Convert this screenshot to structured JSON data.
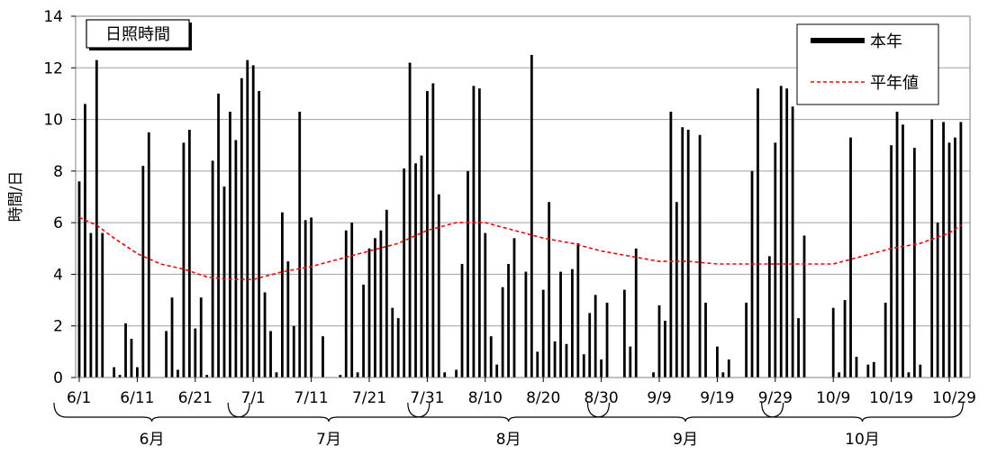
{
  "chart_data": {
    "type": "bar",
    "title": "日照時間",
    "ylabel": "時間/日",
    "xlabel": "",
    "ylim": [
      0,
      14
    ],
    "yticks": [
      0,
      2,
      4,
      6,
      8,
      10,
      12,
      14
    ],
    "grid": true,
    "legend_position": "top-right",
    "x_tick_labels": [
      "6/1",
      "6/11",
      "6/21",
      "7/1",
      "7/11",
      "7/21",
      "7/31",
      "8/10",
      "8/20",
      "8/30",
      "9/9",
      "9/19",
      "9/29",
      "10/9",
      "10/19",
      "10/29"
    ],
    "x_tick_days": [
      0,
      10,
      20,
      30,
      40,
      50,
      60,
      70,
      80,
      90,
      100,
      110,
      120,
      130,
      140,
      150
    ],
    "month_groups": [
      {
        "label": "6月",
        "start_day": 0,
        "end_day": 30
      },
      {
        "label": "7月",
        "start_day": 30,
        "end_day": 61
      },
      {
        "label": "8月",
        "start_day": 61,
        "end_day": 92
      },
      {
        "label": "9月",
        "start_day": 92,
        "end_day": 122
      },
      {
        "label": "10月",
        "start_day": 122,
        "end_day": 153
      }
    ],
    "series": [
      {
        "name": "本年",
        "type": "bar",
        "color": "#000000",
        "values": [
          7.6,
          10.6,
          5.6,
          12.3,
          5.6,
          0,
          0.4,
          0.1,
          2.1,
          1.5,
          0.4,
          8.2,
          9.5,
          0,
          0,
          1.8,
          3.1,
          0.3,
          9.1,
          9.6,
          1.9,
          3.1,
          0.1,
          8.4,
          11.0,
          7.4,
          10.3,
          9.2,
          11.6,
          12.3,
          12.1,
          11.1,
          3.3,
          1.8,
          0.2,
          6.4,
          4.5,
          2.0,
          10.3,
          6.1,
          6.2,
          0,
          1.6,
          0,
          0,
          0.1,
          5.7,
          6.0,
          0.2,
          3.6,
          5.0,
          5.4,
          5.7,
          6.5,
          2.7,
          2.3,
          8.1,
          12.2,
          8.3,
          8.6,
          11.1,
          11.4,
          7.1,
          0.2,
          0,
          0.3,
          4.4,
          8.0,
          11.3,
          11.2,
          5.6,
          1.6,
          0.5,
          3.5,
          4.4,
          5.4,
          0,
          4.1,
          12.5,
          1.0,
          3.4,
          6.8,
          1.4,
          4.1,
          1.3,
          4.2,
          5.2,
          0.9,
          2.5,
          3.2,
          0.7,
          2.9,
          0,
          0,
          3.4,
          1.2,
          5.0,
          0,
          0,
          0.2,
          2.8,
          2.2,
          10.3,
          6.8,
          9.7,
          9.6,
          0,
          9.4,
          2.9,
          0,
          1.2,
          0.2,
          0.7,
          0,
          0,
          2.9,
          8.0,
          11.2,
          0,
          4.7,
          9.1,
          11.3,
          11.2,
          10.5,
          2.3,
          5.5,
          0,
          0,
          0,
          0,
          2.7,
          0.2,
          3.0,
          9.3,
          0.8,
          0,
          0.5,
          0.6,
          0,
          2.9,
          9.0,
          10.3,
          9.8,
          0.2,
          8.9,
          0.5,
          0,
          10.0,
          6.0,
          9.9,
          9.1,
          9.3,
          9.9
        ]
      },
      {
        "name": "平年値",
        "type": "line",
        "color": "#ff0000",
        "dashed": true,
        "x": [
          0,
          3,
          6,
          10,
          14,
          18,
          22,
          26,
          30,
          35,
          40,
          45,
          50,
          55,
          60,
          65,
          70,
          75,
          80,
          85,
          90,
          95,
          100,
          105,
          110,
          115,
          120,
          125,
          130,
          135,
          140,
          145,
          150,
          152
        ],
        "values": [
          6.2,
          5.9,
          5.4,
          4.8,
          4.4,
          4.2,
          3.9,
          3.8,
          3.8,
          4.1,
          4.3,
          4.6,
          4.9,
          5.2,
          5.7,
          6.0,
          6.0,
          5.7,
          5.4,
          5.2,
          4.9,
          4.7,
          4.5,
          4.5,
          4.4,
          4.4,
          4.4,
          4.4,
          4.4,
          4.7,
          5.0,
          5.2,
          5.6,
          5.9
        ]
      }
    ]
  }
}
